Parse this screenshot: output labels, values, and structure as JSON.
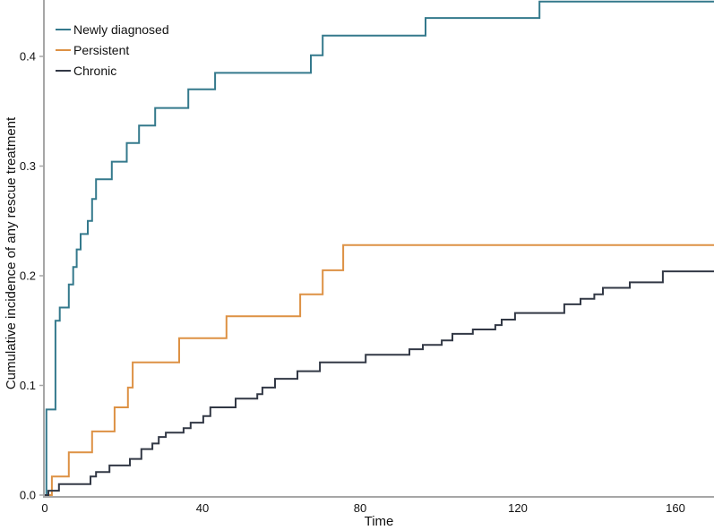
{
  "chart_data": {
    "type": "line",
    "subtype": "step-function-cumulative-incidence",
    "title": "",
    "xlabel": "Time",
    "ylabel": "Cumulative incidence of any rescue treatment",
    "xlim": [
      0,
      170
    ],
    "ylim": [
      0,
      0.45
    ],
    "x_ticks": [
      0,
      40,
      80,
      120,
      160
    ],
    "y_ticks": [
      "0.0",
      "0.1",
      "0.2",
      "0.3",
      "0.4"
    ],
    "grid": false,
    "legend_position": "top-left",
    "series": [
      {
        "name": "Newly diagnosed",
        "color": "#34798c",
        "steps": [
          [
            0,
            0
          ],
          [
            0.4,
            0.078
          ],
          [
            2.7,
            0.159
          ],
          [
            3.8,
            0.171
          ],
          [
            6.1,
            0.192
          ],
          [
            7.2,
            0.208
          ],
          [
            8.1,
            0.224
          ],
          [
            9.1,
            0.238
          ],
          [
            10.9,
            0.25
          ],
          [
            12.0,
            0.27
          ],
          [
            13.0,
            0.288
          ],
          [
            17.0,
            0.304
          ],
          [
            20.8,
            0.321
          ],
          [
            23.9,
            0.337
          ],
          [
            28.0,
            0.353
          ],
          [
            36.4,
            0.37
          ],
          [
            43.2,
            0.385
          ],
          [
            67.5,
            0.401
          ],
          [
            70.5,
            0.419
          ],
          [
            96.6,
            0.435
          ],
          [
            125.5,
            0.45
          ],
          [
            170,
            0.45
          ]
        ]
      },
      {
        "name": "Persistent",
        "color": "#dd9144",
        "steps": [
          [
            0,
            0
          ],
          [
            1.8,
            0.017
          ],
          [
            6.1,
            0.039
          ],
          [
            12.0,
            0.058
          ],
          [
            17.7,
            0.08
          ],
          [
            21.1,
            0.098
          ],
          [
            22.3,
            0.121
          ],
          [
            34.1,
            0.143
          ],
          [
            46.1,
            0.163
          ],
          [
            64.8,
            0.183
          ],
          [
            70.5,
            0.205
          ],
          [
            75.7,
            0.228
          ],
          [
            170,
            0.228
          ]
        ]
      },
      {
        "name": "Chronic",
        "color": "#323845",
        "steps": [
          [
            0,
            0
          ],
          [
            0.9,
            0.004
          ],
          [
            3.6,
            0.01
          ],
          [
            11.6,
            0.017
          ],
          [
            13.0,
            0.021
          ],
          [
            16.4,
            0.027
          ],
          [
            21.6,
            0.033
          ],
          [
            24.5,
            0.042
          ],
          [
            27.3,
            0.047
          ],
          [
            28.9,
            0.053
          ],
          [
            30.7,
            0.057
          ],
          [
            35.2,
            0.061
          ],
          [
            37.0,
            0.066
          ],
          [
            40.2,
            0.072
          ],
          [
            42.0,
            0.08
          ],
          [
            48.4,
            0.088
          ],
          [
            53.9,
            0.092
          ],
          [
            55.2,
            0.098
          ],
          [
            58.4,
            0.106
          ],
          [
            64.1,
            0.113
          ],
          [
            69.8,
            0.121
          ],
          [
            81.4,
            0.128
          ],
          [
            92.5,
            0.133
          ],
          [
            95.9,
            0.137
          ],
          [
            100.7,
            0.141
          ],
          [
            103.4,
            0.147
          ],
          [
            108.6,
            0.151
          ],
          [
            114.3,
            0.155
          ],
          [
            115.9,
            0.16
          ],
          [
            119.3,
            0.166
          ],
          [
            131.8,
            0.174
          ],
          [
            135.9,
            0.179
          ],
          [
            139.4,
            0.183
          ],
          [
            141.6,
            0.189
          ],
          [
            148.4,
            0.194
          ],
          [
            156.8,
            0.204
          ],
          [
            170,
            0.204
          ]
        ]
      }
    ],
    "colors": {
      "axis": "#a6a6a6",
      "text": "#111111",
      "background": "#ffffff"
    }
  }
}
